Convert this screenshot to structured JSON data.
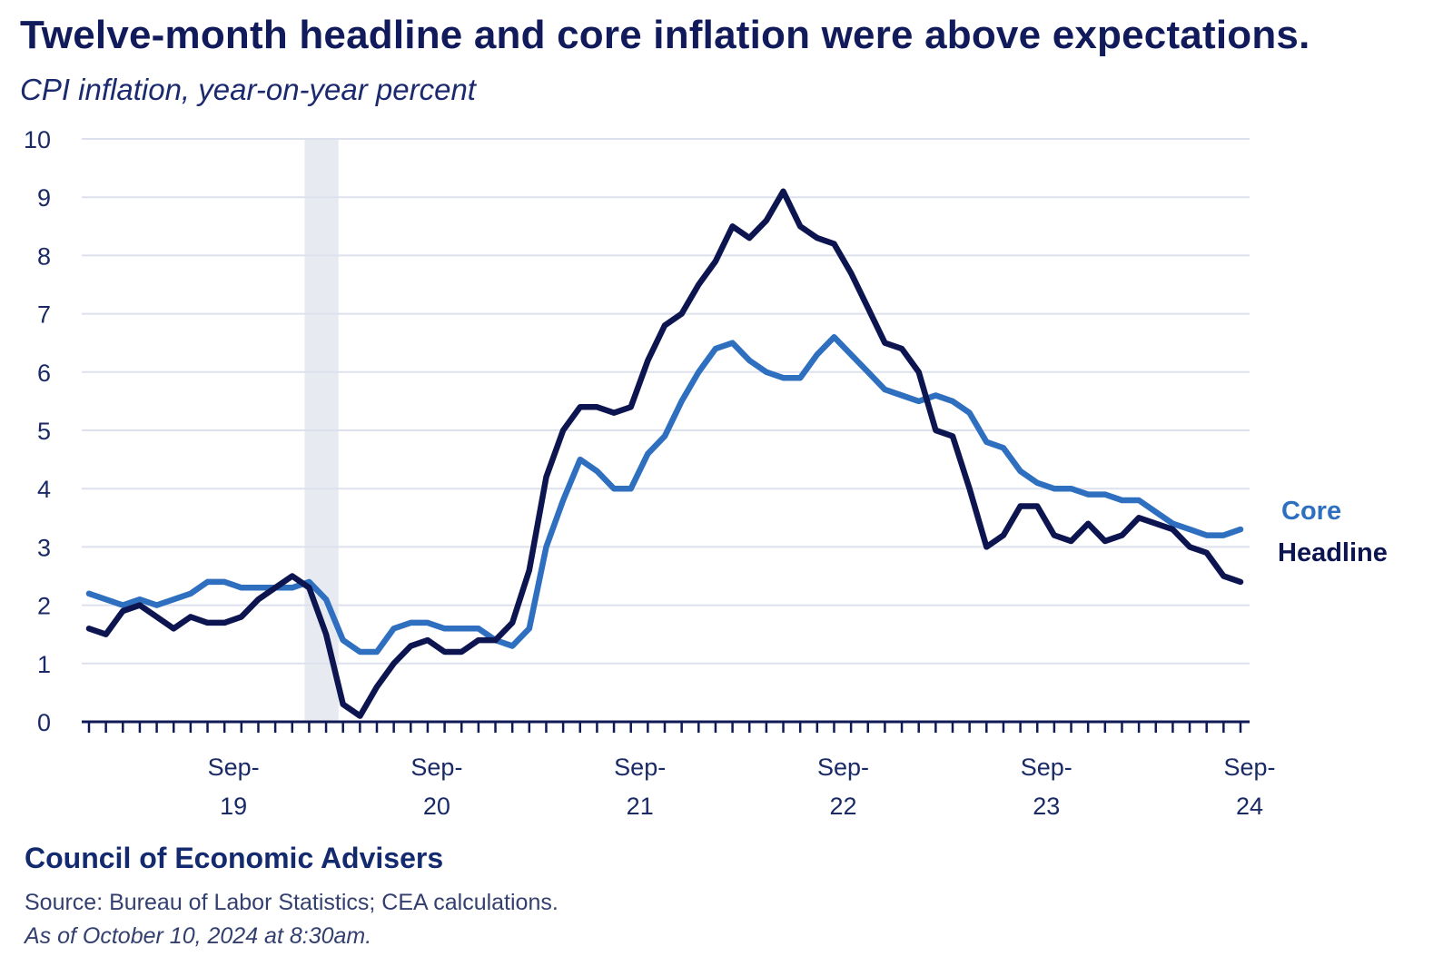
{
  "chart_data": {
    "type": "line",
    "title": "Twelve-month headline and core inflation were above expectations.",
    "subtitle": "CPI inflation, year-on-year percent",
    "x_start": "2019-01",
    "x_tick_labels": [
      {
        "date": "2019-09",
        "line1": "Sep-",
        "line2": "19"
      },
      {
        "date": "2020-09",
        "line1": "Sep-",
        "line2": "20"
      },
      {
        "date": "2021-09",
        "line1": "Sep-",
        "line2": "21"
      },
      {
        "date": "2022-09",
        "line1": "Sep-",
        "line2": "22"
      },
      {
        "date": "2023-09",
        "line1": "Sep-",
        "line2": "23"
      },
      {
        "date": "2024-09",
        "line1": "Sep-",
        "line2": "24"
      }
    ],
    "ylim": [
      0,
      10
    ],
    "y_ticks": [
      0,
      1,
      2,
      3,
      4,
      5,
      6,
      7,
      8,
      9,
      10
    ],
    "grid": true,
    "shaded_period": {
      "start": "2020-02",
      "end": "2020-04",
      "color": "#e8eaf2"
    },
    "x": [
      "2019-01",
      "2019-02",
      "2019-03",
      "2019-04",
      "2019-05",
      "2019-06",
      "2019-07",
      "2019-08",
      "2019-09",
      "2019-10",
      "2019-11",
      "2019-12",
      "2020-01",
      "2020-02",
      "2020-03",
      "2020-04",
      "2020-05",
      "2020-06",
      "2020-07",
      "2020-08",
      "2020-09",
      "2020-10",
      "2020-11",
      "2020-12",
      "2021-01",
      "2021-02",
      "2021-03",
      "2021-04",
      "2021-05",
      "2021-06",
      "2021-07",
      "2021-08",
      "2021-09",
      "2021-10",
      "2021-11",
      "2021-12",
      "2022-01",
      "2022-02",
      "2022-03",
      "2022-04",
      "2022-05",
      "2022-06",
      "2022-07",
      "2022-08",
      "2022-09",
      "2022-10",
      "2022-11",
      "2022-12",
      "2023-01",
      "2023-02",
      "2023-03",
      "2023-04",
      "2023-05",
      "2023-06",
      "2023-07",
      "2023-08",
      "2023-09",
      "2023-10",
      "2023-11",
      "2023-12",
      "2024-01",
      "2024-02",
      "2024-03",
      "2024-04",
      "2024-05",
      "2024-06",
      "2024-07",
      "2024-08",
      "2024-09"
    ],
    "series": [
      {
        "name": "Core",
        "color": "#2f6fbf",
        "values": [
          2.2,
          2.1,
          2.0,
          2.1,
          2.0,
          2.1,
          2.2,
          2.4,
          2.4,
          2.3,
          2.3,
          2.3,
          2.3,
          2.4,
          2.1,
          1.4,
          1.2,
          1.2,
          1.6,
          1.7,
          1.7,
          1.6,
          1.6,
          1.6,
          1.4,
          1.3,
          1.6,
          3.0,
          3.8,
          4.5,
          4.3,
          4.0,
          4.0,
          4.6,
          4.9,
          5.5,
          6.0,
          6.4,
          6.5,
          6.2,
          6.0,
          5.9,
          5.9,
          6.3,
          6.6,
          6.3,
          6.0,
          5.7,
          5.6,
          5.5,
          5.6,
          5.5,
          5.3,
          4.8,
          4.7,
          4.3,
          4.1,
          4.0,
          4.0,
          3.9,
          3.9,
          3.8,
          3.8,
          3.6,
          3.4,
          3.3,
          3.2,
          3.2,
          3.3
        ]
      },
      {
        "name": "Headline",
        "color": "#0d1550",
        "values": [
          1.6,
          1.5,
          1.9,
          2.0,
          1.8,
          1.6,
          1.8,
          1.7,
          1.7,
          1.8,
          2.1,
          2.3,
          2.5,
          2.3,
          1.5,
          0.3,
          0.1,
          0.6,
          1.0,
          1.3,
          1.4,
          1.2,
          1.2,
          1.4,
          1.4,
          1.7,
          2.6,
          4.2,
          5.0,
          5.4,
          5.4,
          5.3,
          5.4,
          6.2,
          6.8,
          7.0,
          7.5,
          7.9,
          8.5,
          8.3,
          8.6,
          9.1,
          8.5,
          8.3,
          8.2,
          7.7,
          7.1,
          6.5,
          6.4,
          6.0,
          5.0,
          4.9,
          4.0,
          3.0,
          3.2,
          3.7,
          3.7,
          3.2,
          3.1,
          3.4,
          3.1,
          3.2,
          3.5,
          3.4,
          3.3,
          3.0,
          2.9,
          2.5,
          2.4
        ]
      }
    ],
    "legend": [
      {
        "label": "Core",
        "color": "#2f6fbf"
      },
      {
        "label": "Headline",
        "color": "#0d1550"
      }
    ]
  },
  "footer": {
    "org": "Council of Economic Advisers",
    "source": "Source: Bureau of Labor Statistics; CEA calculations.",
    "as_of": "As of October 10, 2024 at 8:30am."
  }
}
